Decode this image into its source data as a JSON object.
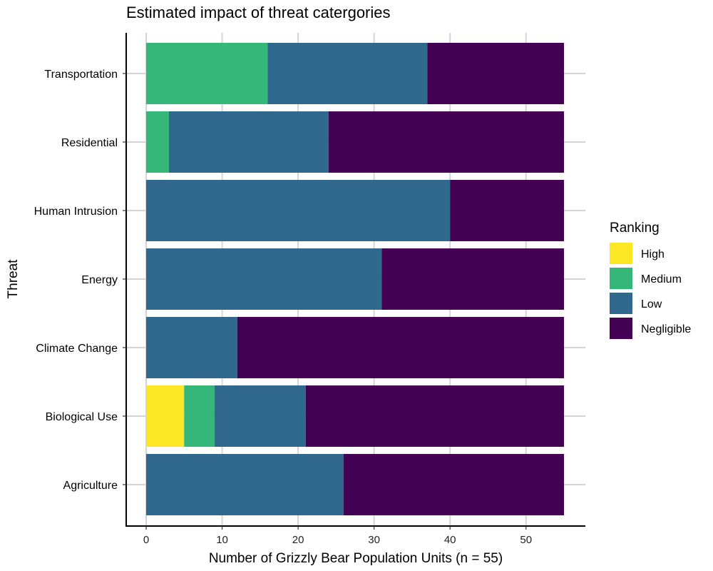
{
  "chart_data": {
    "type": "bar",
    "orientation": "horizontal",
    "stacked": true,
    "title": "Estimated impact of threat catergories",
    "xlabel": "Number of Grizzly Bear Population Units (n = 55)",
    "ylabel": "Threat",
    "xlim": [
      0,
      55
    ],
    "xticks": [
      0,
      10,
      20,
      30,
      40,
      50
    ],
    "grid": true,
    "categories": [
      "Transportation",
      "Residential",
      "Human Intrusion",
      "Energy",
      "Climate Change",
      "Biological Use",
      "Agriculture"
    ],
    "series": [
      {
        "name": "High",
        "color": "#FDE725",
        "values": [
          0,
          0,
          0,
          0,
          0,
          5,
          0
        ]
      },
      {
        "name": "Medium",
        "color": "#35B779",
        "values": [
          16,
          3,
          0,
          0,
          0,
          4,
          0
        ]
      },
      {
        "name": "Low",
        "color": "#31688E",
        "values": [
          21,
          21,
          40,
          31,
          12,
          12,
          26
        ]
      },
      {
        "name": "Negligible",
        "color": "#440154",
        "values": [
          18,
          31,
          15,
          24,
          43,
          34,
          29
        ]
      }
    ],
    "legend": {
      "title": "Ranking",
      "position": "right"
    }
  }
}
